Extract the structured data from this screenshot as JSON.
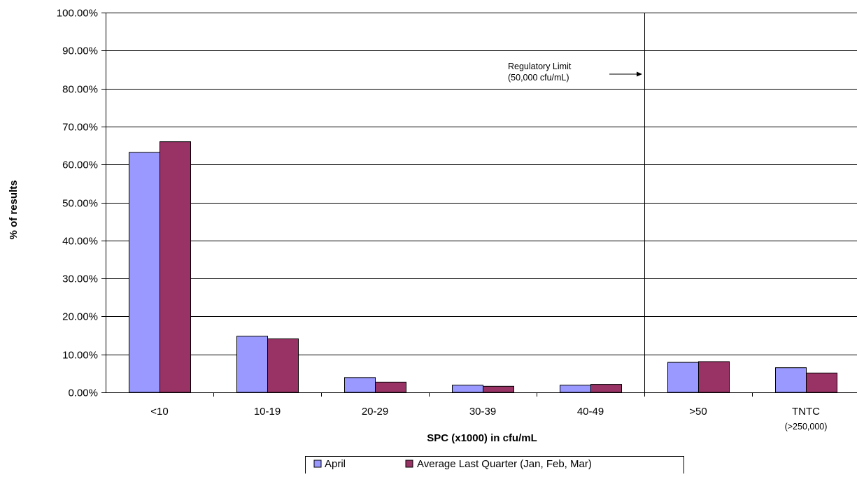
{
  "chart_data": {
    "type": "bar",
    "title": "",
    "xlabel": "SPC (x1000) in cfu/mL",
    "ylabel": "% of results",
    "ylim": [
      0,
      100
    ],
    "y_ticks": [
      "0.00%",
      "10.00%",
      "20.00%",
      "30.00%",
      "40.00%",
      "50.00%",
      "60.00%",
      "70.00%",
      "80.00%",
      "90.00%",
      "100.00%"
    ],
    "categories": [
      "<10",
      "10-19",
      "20-29",
      "30-39",
      "40-49",
      ">50",
      "TNTC"
    ],
    "category_sublabels": [
      "",
      "",
      "",
      "",
      "",
      "",
      "(>250,000)"
    ],
    "series": [
      {
        "name": "April",
        "color": "#9999FF",
        "values": [
          63.2,
          14.8,
          3.9,
          1.9,
          1.9,
          7.9,
          6.5
        ]
      },
      {
        "name": "Average Last Quarter (Jan, Feb, Mar)",
        "color": "#993366",
        "values": [
          66.0,
          14.1,
          2.7,
          1.6,
          2.1,
          8.1,
          5.1
        ]
      }
    ],
    "grid": true,
    "legend_position": "bottom-center",
    "reference_line": {
      "after_category": "40-49",
      "label_lines": [
        "Regulatory Limit",
        "(50,000 cfu/mL)"
      ]
    }
  }
}
